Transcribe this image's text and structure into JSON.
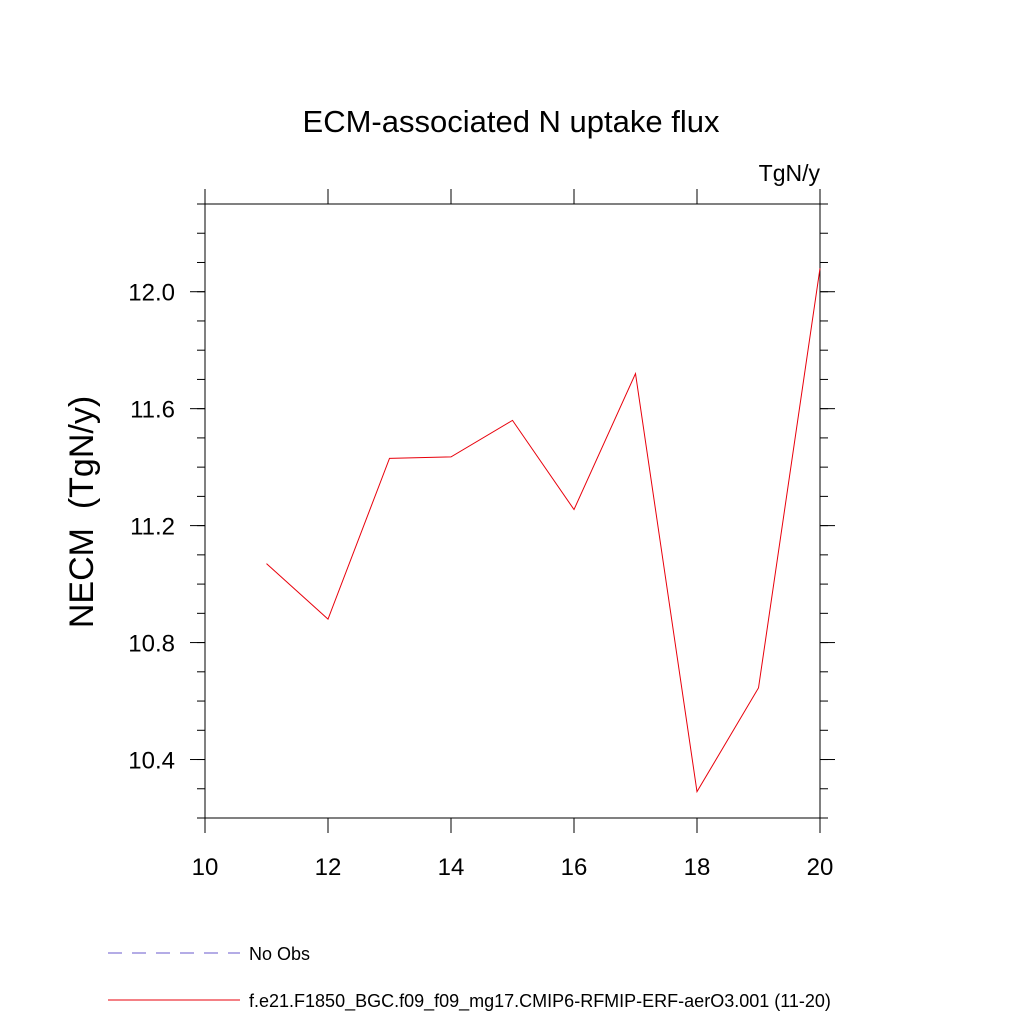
{
  "chart_data": {
    "type": "line",
    "title": "ECM-associated N uptake flux",
    "units_label": "TgN/y",
    "ylabel": "NECM  (TgN/y)",
    "xlabel": "",
    "xlim": [
      10,
      20
    ],
    "ylim": [
      10.2,
      12.3
    ],
    "x_ticks": [
      10,
      12,
      14,
      16,
      18,
      20
    ],
    "x_tick_labels": [
      "10",
      "12",
      "14",
      "16",
      "18",
      "20"
    ],
    "y_ticks": [
      10.4,
      10.8,
      11.2,
      11.6,
      12.0
    ],
    "y_tick_labels": [
      "10.4",
      "10.8",
      "11.2",
      "11.6",
      "12.0"
    ],
    "grid": false,
    "legend_position": "bottom",
    "series": [
      {
        "name": "No Obs",
        "color": "#6a5acd",
        "dash": "dashed",
        "x": [],
        "y": []
      },
      {
        "name": "f.e21.F1850_BGC.f09_f09_mg17.CMIP6-RFMIP-ERF-aerO3.001 (11-20)",
        "color": "#e8000b",
        "dash": "solid",
        "x": [
          11,
          12,
          13,
          14,
          15,
          16,
          17,
          18,
          19,
          20
        ],
        "y": [
          11.07,
          10.88,
          11.43,
          11.435,
          11.56,
          11.255,
          11.72,
          10.29,
          10.645,
          12.08
        ]
      }
    ]
  }
}
